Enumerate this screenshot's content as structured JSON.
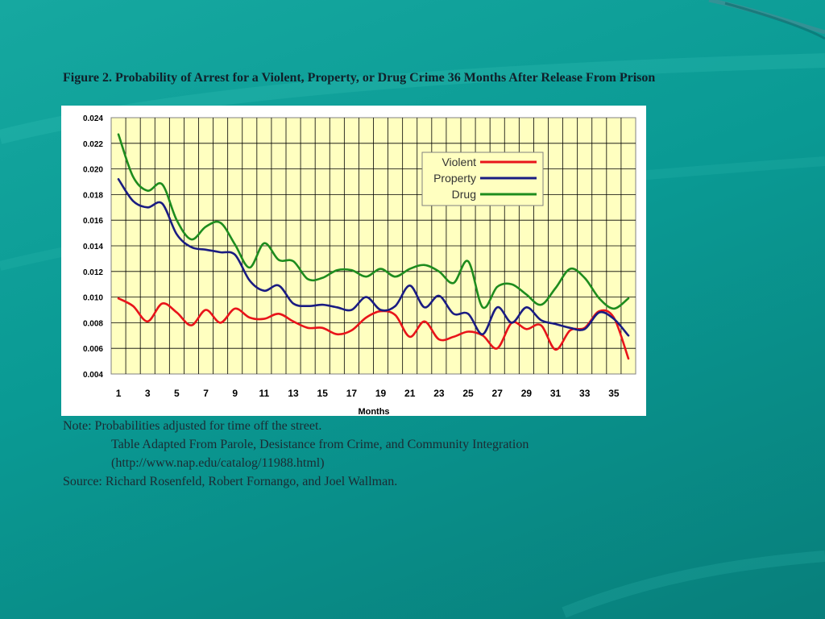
{
  "slide": {
    "title": "Figure 2. Probability of Arrest for a Violent, Property, or Drug Crime 36 Months After Release From Prison",
    "notes": {
      "note": "Note: Probabilities adjusted for time off the street.",
      "table_adapted": "Table Adapted From Parole, Desistance from Crime, and Community Integration",
      "url": "(http://www.nap.edu/catalog/11988.html)",
      "source": "Source: Richard Rosenfeld, Robert Fornango, and Joel Wallman."
    }
  },
  "chart_data": {
    "type": "line",
    "title": "",
    "xlabel": "Months",
    "ylabel": "",
    "x": [
      1,
      2,
      3,
      4,
      5,
      6,
      7,
      8,
      9,
      10,
      11,
      12,
      13,
      14,
      15,
      16,
      17,
      18,
      19,
      20,
      21,
      22,
      23,
      24,
      25,
      26,
      27,
      28,
      29,
      30,
      31,
      32,
      33,
      34,
      35,
      36
    ],
    "x_tick_labels": [
      "1",
      "3",
      "5",
      "7",
      "9",
      "11",
      "13",
      "15",
      "17",
      "19",
      "21",
      "23",
      "25",
      "27",
      "29",
      "31",
      "33",
      "35"
    ],
    "ylim": [
      0.004,
      0.024
    ],
    "y_tick_labels": [
      "0.024",
      "0.022",
      "0.020",
      "0.018",
      "0.016",
      "0.014",
      "0.012",
      "0.010",
      "0.008",
      "0.006",
      "0.004"
    ],
    "grid": true,
    "plot_background": "#ffffc0",
    "legend_position": "top-right",
    "series": [
      {
        "name": "Violent",
        "color": "#e8141a",
        "values": [
          0.0099,
          0.0093,
          0.0081,
          0.0095,
          0.0088,
          0.0078,
          0.009,
          0.008,
          0.0091,
          0.0084,
          0.0083,
          0.0087,
          0.0081,
          0.0076,
          0.0076,
          0.0071,
          0.0074,
          0.0084,
          0.0089,
          0.0086,
          0.0069,
          0.0081,
          0.0067,
          0.0069,
          0.0073,
          0.007,
          0.006,
          0.008,
          0.0075,
          0.0078,
          0.0059,
          0.0074,
          0.0076,
          0.0089,
          0.0084,
          0.0052
        ]
      },
      {
        "name": "Property",
        "color": "#1a1c82",
        "values": [
          0.0192,
          0.0175,
          0.017,
          0.0173,
          0.0149,
          0.0139,
          0.0137,
          0.0135,
          0.0133,
          0.0113,
          0.0105,
          0.0109,
          0.0095,
          0.0093,
          0.0094,
          0.0092,
          0.009,
          0.01,
          0.009,
          0.0093,
          0.0109,
          0.0092,
          0.0101,
          0.0087,
          0.0087,
          0.0071,
          0.0092,
          0.008,
          0.0092,
          0.0082,
          0.0079,
          0.0076,
          0.0075,
          0.0088,
          0.0083,
          0.007
        ]
      },
      {
        "name": "Drug",
        "color": "#1e8c1e",
        "values": [
          0.0227,
          0.0194,
          0.0183,
          0.0188,
          0.016,
          0.0145,
          0.0155,
          0.0158,
          0.0141,
          0.0123,
          0.0142,
          0.0129,
          0.0128,
          0.0114,
          0.0115,
          0.0121,
          0.0121,
          0.0116,
          0.0122,
          0.0116,
          0.0122,
          0.0125,
          0.012,
          0.0111,
          0.0128,
          0.0092,
          0.0108,
          0.011,
          0.0102,
          0.0094,
          0.0107,
          0.0122,
          0.0115,
          0.0099,
          0.0091,
          0.0099
        ]
      }
    ]
  }
}
